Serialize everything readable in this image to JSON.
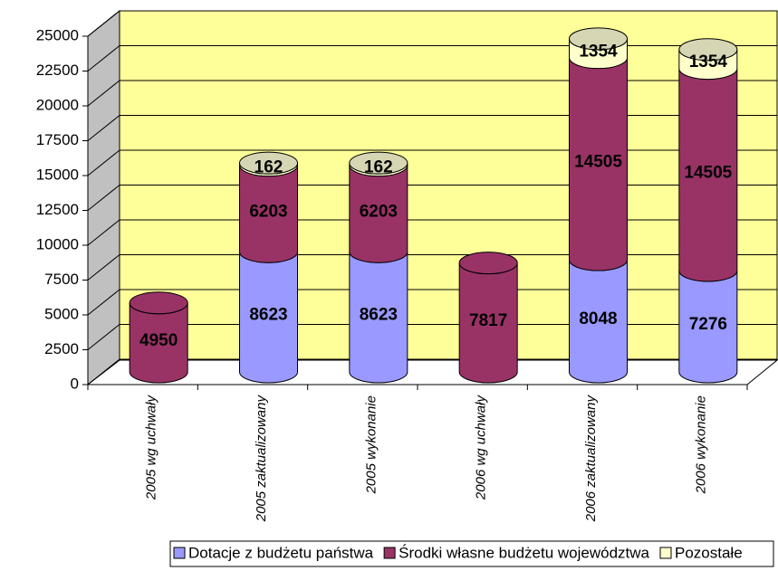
{
  "chart_data": {
    "type": "bar3d_stacked_cylinder",
    "categories": [
      "2005 wg uchwały",
      "2005 zaktualizowany",
      "2005 wykonanie",
      "2006 wg uchwały",
      "2006 zaktualizowany",
      "2006 wykonanie"
    ],
    "series": [
      {
        "name": "Dotacje z budżetu państwa",
        "color": "#9999ff",
        "values": [
          null,
          8623,
          8623,
          null,
          8048,
          7276
        ]
      },
      {
        "name": "Środki własne budżetu województwa",
        "color": "#993366",
        "values": [
          4950,
          6203,
          6203,
          7817,
          14505,
          14505
        ]
      },
      {
        "name": "Pozostałe",
        "color": "#ffffcc",
        "values": [
          null,
          162,
          162,
          null,
          1354,
          1354
        ]
      }
    ],
    "ylim": [
      0,
      25000
    ],
    "yticks": [
      0,
      2500,
      5000,
      7500,
      10000,
      12500,
      15000,
      17500,
      20000,
      22500,
      25000
    ],
    "grid": true,
    "legend": "bottom"
  }
}
